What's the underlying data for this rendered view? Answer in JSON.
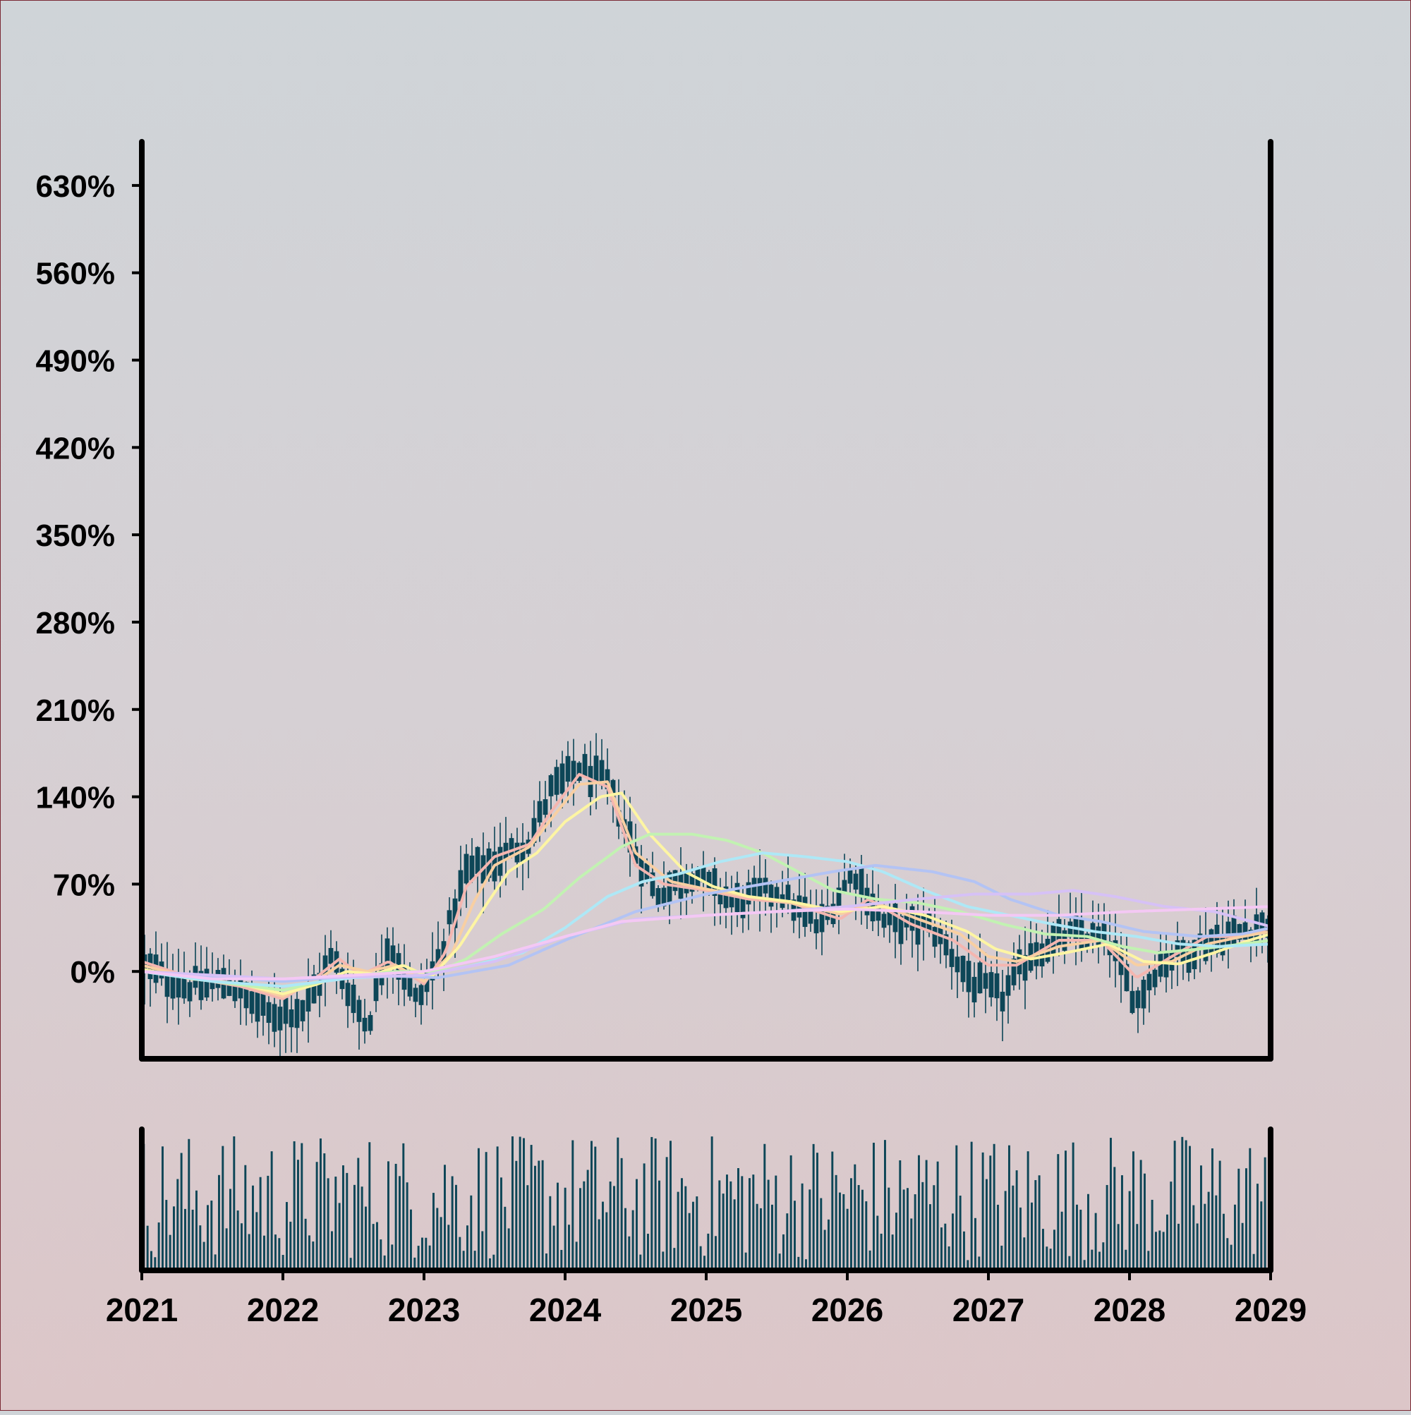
{
  "chart_data": [
    {
      "type": "ohlc",
      "title": "",
      "xlabel": "",
      "ylabel": "",
      "ylim": [
        -70,
        665
      ],
      "y_ticks": [
        0,
        70,
        140,
        210,
        280,
        350,
        420,
        490,
        560,
        630
      ],
      "y_tick_labels": [
        "0%",
        "70%",
        "140%",
        "210%",
        "280%",
        "350%",
        "420%",
        "490%",
        "560%",
        "630%"
      ],
      "xlim": [
        2021,
        2029
      ],
      "grid": false,
      "legend": "none",
      "price_series": {
        "color": "#0d4657",
        "step_years": 0.04,
        "close_anchors": [
          [
            2021.0,
            5
          ],
          [
            2021.3,
            -12
          ],
          [
            2021.6,
            -8
          ],
          [
            2021.9,
            -35
          ],
          [
            2022.15,
            -30
          ],
          [
            2022.35,
            12
          ],
          [
            2022.6,
            -45
          ],
          [
            2022.75,
            25
          ],
          [
            2022.95,
            -25
          ],
          [
            2023.1,
            8
          ],
          [
            2023.3,
            80
          ],
          [
            2023.5,
            88
          ],
          [
            2023.75,
            105
          ],
          [
            2023.9,
            145
          ],
          [
            2024.1,
            163
          ],
          [
            2024.3,
            150
          ],
          [
            2024.5,
            95
          ],
          [
            2024.65,
            62
          ],
          [
            2024.9,
            78
          ],
          [
            2025.2,
            55
          ],
          [
            2025.5,
            65
          ],
          [
            2025.8,
            35
          ],
          [
            2026.05,
            80
          ],
          [
            2026.25,
            40
          ],
          [
            2026.6,
            35
          ],
          [
            2026.9,
            -10
          ],
          [
            2027.1,
            -20
          ],
          [
            2027.3,
            15
          ],
          [
            2027.6,
            30
          ],
          [
            2027.85,
            25
          ],
          [
            2028.05,
            -25
          ],
          [
            2028.2,
            5
          ],
          [
            2028.5,
            22
          ],
          [
            2028.75,
            30
          ],
          [
            2029.0,
            40
          ]
        ],
        "body_half_range": 9,
        "wick_half_range": 25
      },
      "moving_averages": [
        {
          "color": "#f4b6b0",
          "values": [
            [
              2021.0,
              8
            ],
            [
              2021.35,
              -5
            ],
            [
              2021.7,
              -12
            ],
            [
              2022.0,
              -22
            ],
            [
              2022.2,
              -8
            ],
            [
              2022.4,
              10
            ],
            [
              2022.55,
              -3
            ],
            [
              2022.75,
              8
            ],
            [
              2023.0,
              -10
            ],
            [
              2023.15,
              15
            ],
            [
              2023.3,
              68
            ],
            [
              2023.5,
              92
            ],
            [
              2023.75,
              102
            ],
            [
              2023.9,
              128
            ],
            [
              2024.1,
              158
            ],
            [
              2024.3,
              148
            ],
            [
              2024.5,
              85
            ],
            [
              2024.7,
              70
            ],
            [
              2025.0,
              65
            ],
            [
              2025.3,
              58
            ],
            [
              2025.6,
              55
            ],
            [
              2025.95,
              42
            ],
            [
              2026.15,
              58
            ],
            [
              2026.45,
              38
            ],
            [
              2026.75,
              25
            ],
            [
              2027.0,
              5
            ],
            [
              2027.2,
              5
            ],
            [
              2027.5,
              25
            ],
            [
              2027.8,
              25
            ],
            [
              2028.05,
              -5
            ],
            [
              2028.3,
              12
            ],
            [
              2028.55,
              28
            ],
            [
              2028.8,
              28
            ],
            [
              2029.0,
              35
            ]
          ]
        },
        {
          "color": "#f8cfa2",
          "values": [
            [
              2021.0,
              5
            ],
            [
              2021.35,
              -5
            ],
            [
              2021.7,
              -10
            ],
            [
              2022.0,
              -20
            ],
            [
              2022.2,
              -10
            ],
            [
              2022.4,
              5
            ],
            [
              2022.6,
              0
            ],
            [
              2022.8,
              5
            ],
            [
              2023.0,
              -8
            ],
            [
              2023.2,
              15
            ],
            [
              2023.35,
              55
            ],
            [
              2023.5,
              85
            ],
            [
              2023.75,
              100
            ],
            [
              2023.9,
              122
            ],
            [
              2024.1,
              150
            ],
            [
              2024.3,
              152
            ],
            [
              2024.5,
              95
            ],
            [
              2024.75,
              72
            ],
            [
              2025.0,
              66
            ],
            [
              2025.3,
              60
            ],
            [
              2025.6,
              55
            ],
            [
              2025.95,
              46
            ],
            [
              2026.2,
              55
            ],
            [
              2026.5,
              42
            ],
            [
              2026.8,
              30
            ],
            [
              2027.0,
              12
            ],
            [
              2027.2,
              8
            ],
            [
              2027.5,
              20
            ],
            [
              2027.8,
              25
            ],
            [
              2028.05,
              5
            ],
            [
              2028.3,
              8
            ],
            [
              2028.55,
              22
            ],
            [
              2028.8,
              28
            ],
            [
              2029.0,
              32
            ]
          ]
        },
        {
          "color": "#fdf5a3",
          "values": [
            [
              2021.0,
              2
            ],
            [
              2021.35,
              -6
            ],
            [
              2021.7,
              -10
            ],
            [
              2022.0,
              -18
            ],
            [
              2022.25,
              -10
            ],
            [
              2022.45,
              0
            ],
            [
              2022.65,
              -2
            ],
            [
              2022.85,
              5
            ],
            [
              2023.05,
              -5
            ],
            [
              2023.25,
              20
            ],
            [
              2023.45,
              55
            ],
            [
              2023.6,
              80
            ],
            [
              2023.8,
              95
            ],
            [
              2024.0,
              120
            ],
            [
              2024.25,
              140
            ],
            [
              2024.4,
              143
            ],
            [
              2024.6,
              110
            ],
            [
              2024.85,
              80
            ],
            [
              2025.05,
              68
            ],
            [
              2025.3,
              60
            ],
            [
              2025.6,
              56
            ],
            [
              2025.95,
              48
            ],
            [
              2026.25,
              52
            ],
            [
              2026.55,
              45
            ],
            [
              2026.85,
              32
            ],
            [
              2027.05,
              18
            ],
            [
              2027.3,
              10
            ],
            [
              2027.55,
              15
            ],
            [
              2027.85,
              22
            ],
            [
              2028.1,
              8
            ],
            [
              2028.35,
              6
            ],
            [
              2028.6,
              15
            ],
            [
              2028.85,
              25
            ],
            [
              2029.0,
              30
            ]
          ]
        },
        {
          "color": "#c2f2b2",
          "values": [
            [
              2021.0,
              0
            ],
            [
              2021.5,
              -8
            ],
            [
              2022.0,
              -15
            ],
            [
              2022.4,
              -5
            ],
            [
              2022.8,
              0
            ],
            [
              2023.1,
              0
            ],
            [
              2023.3,
              10
            ],
            [
              2023.55,
              30
            ],
            [
              2023.85,
              50
            ],
            [
              2024.1,
              75
            ],
            [
              2024.4,
              100
            ],
            [
              2024.6,
              110
            ],
            [
              2024.9,
              110
            ],
            [
              2025.15,
              105
            ],
            [
              2025.4,
              95
            ],
            [
              2025.65,
              80
            ],
            [
              2025.9,
              65
            ],
            [
              2026.2,
              58
            ],
            [
              2026.5,
              55
            ],
            [
              2026.8,
              48
            ],
            [
              2027.1,
              38
            ],
            [
              2027.4,
              30
            ],
            [
              2027.7,
              28
            ],
            [
              2027.95,
              20
            ],
            [
              2028.2,
              15
            ],
            [
              2028.5,
              18
            ],
            [
              2028.8,
              22
            ],
            [
              2029.0,
              25
            ]
          ]
        },
        {
          "color": "#aee8f6",
          "values": [
            [
              2021.0,
              0
            ],
            [
              2021.5,
              -8
            ],
            [
              2022.0,
              -12
            ],
            [
              2022.5,
              -5
            ],
            [
              2023.0,
              -3
            ],
            [
              2023.35,
              5
            ],
            [
              2023.7,
              15
            ],
            [
              2024.0,
              35
            ],
            [
              2024.3,
              60
            ],
            [
              2024.55,
              72
            ],
            [
              2024.8,
              78
            ],
            [
              2025.1,
              88
            ],
            [
              2025.4,
              95
            ],
            [
              2025.7,
              92
            ],
            [
              2026.0,
              88
            ],
            [
              2026.25,
              80
            ],
            [
              2026.55,
              65
            ],
            [
              2026.85,
              52
            ],
            [
              2027.15,
              45
            ],
            [
              2027.45,
              38
            ],
            [
              2027.75,
              32
            ],
            [
              2028.05,
              28
            ],
            [
              2028.35,
              22
            ],
            [
              2028.65,
              20
            ],
            [
              2029.0,
              22
            ]
          ]
        },
        {
          "color": "#b3c3f4",
          "values": [
            [
              2021.0,
              0
            ],
            [
              2022.0,
              -8
            ],
            [
              2022.6,
              -3
            ],
            [
              2023.1,
              -5
            ],
            [
              2023.6,
              5
            ],
            [
              2024.0,
              25
            ],
            [
              2024.5,
              48
            ],
            [
              2025.0,
              62
            ],
            [
              2025.5,
              72
            ],
            [
              2025.9,
              80
            ],
            [
              2026.2,
              85
            ],
            [
              2026.6,
              80
            ],
            [
              2026.9,
              72
            ],
            [
              2027.15,
              58
            ],
            [
              2027.5,
              45
            ],
            [
              2027.8,
              40
            ],
            [
              2028.1,
              32
            ],
            [
              2028.5,
              28
            ],
            [
              2028.8,
              30
            ],
            [
              2029.0,
              35
            ]
          ]
        },
        {
          "color": "#d6c1f6",
          "values": [
            [
              2021.0,
              0
            ],
            [
              2022.0,
              -6
            ],
            [
              2023.0,
              -3
            ],
            [
              2023.5,
              8
            ],
            [
              2024.0,
              28
            ],
            [
              2024.5,
              42
            ],
            [
              2025.0,
              45
            ],
            [
              2025.5,
              48
            ],
            [
              2026.0,
              52
            ],
            [
              2026.5,
              58
            ],
            [
              2026.9,
              62
            ],
            [
              2027.3,
              62
            ],
            [
              2027.6,
              65
            ],
            [
              2027.9,
              60
            ],
            [
              2028.25,
              52
            ],
            [
              2028.6,
              48
            ],
            [
              2029.0,
              36
            ]
          ]
        },
        {
          "color": "#f4c8f4",
          "values": [
            [
              2021.0,
              0
            ],
            [
              2021.5,
              -6
            ],
            [
              2022.0,
              -6
            ],
            [
              2022.5,
              -3
            ],
            [
              2023.0,
              0
            ],
            [
              2023.5,
              12
            ],
            [
              2024.0,
              28
            ],
            [
              2024.4,
              40
            ],
            [
              2025.0,
              45
            ],
            [
              2025.5,
              48
            ],
            [
              2026.0,
              50
            ],
            [
              2026.5,
              48
            ],
            [
              2027.0,
              45
            ],
            [
              2027.5,
              45
            ],
            [
              2028.0,
              48
            ],
            [
              2028.5,
              50
            ],
            [
              2029.0,
              52
            ]
          ]
        }
      ]
    },
    {
      "type": "bar",
      "title": "",
      "ylabel": "",
      "role": "volume",
      "color": "#0d4657",
      "x_ticks": [
        2021,
        2022,
        2023,
        2024,
        2025,
        2026,
        2027,
        2028,
        2029
      ],
      "x_tick_labels": [
        "2021",
        "2022",
        "2023",
        "2024",
        "2025",
        "2026",
        "2027",
        "2028",
        "2029"
      ],
      "bar_count": 300,
      "value_range": [
        0,
        1
      ],
      "typical_value": 0.55
    }
  ]
}
